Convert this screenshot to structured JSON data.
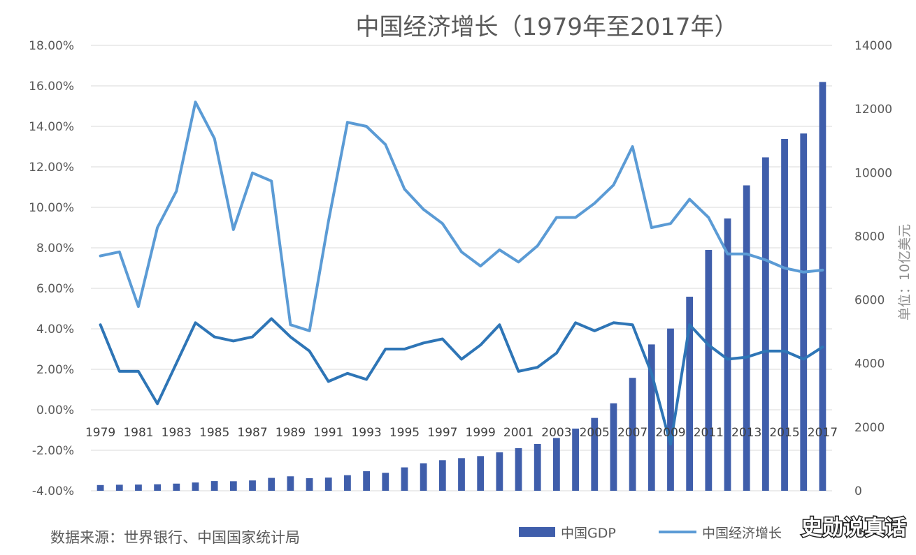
{
  "chart_data": {
    "type": "bar+line",
    "title": "中国经济增长（1979年至2017年）",
    "source": "数据来源：世界银行、中国国家统计局",
    "right_axis_unit": "单位：10亿美元",
    "watermark": "史勋说真话",
    "x_tick_labels": [
      "1979",
      "1981",
      "1983",
      "1985",
      "1987",
      "1989",
      "1991",
      "1993",
      "1995",
      "1997",
      "1999",
      "2001",
      "2003",
      "2005",
      "2007",
      "2009",
      "2011",
      "2013",
      "2015",
      "2017"
    ],
    "years": [
      1979,
      1980,
      1981,
      1982,
      1983,
      1984,
      1985,
      1986,
      1987,
      1988,
      1989,
      1990,
      1991,
      1992,
      1993,
      1994,
      1995,
      1996,
      1997,
      1998,
      1999,
      2000,
      2001,
      2002,
      2003,
      2004,
      2005,
      2006,
      2007,
      2008,
      2009,
      2010,
      2011,
      2012,
      2013,
      2014,
      2015,
      2016,
      2017
    ],
    "left_axis": {
      "min": -4,
      "max": 18,
      "step": 2,
      "tick_labels": [
        "-4.00%",
        "-2.00%",
        "0.00%",
        "2.00%",
        "4.00%",
        "6.00%",
        "8.00%",
        "10.00%",
        "12.00%",
        "14.00%",
        "16.00%",
        "18.00%"
      ]
    },
    "right_axis": {
      "min": 0,
      "max": 14000,
      "step": 2000,
      "tick_labels": [
        "0",
        "2000",
        "4000",
        "6000",
        "8000",
        "10000",
        "12000",
        "14000"
      ]
    },
    "series": [
      {
        "name": "中国GDP",
        "type": "bar",
        "axis": "right",
        "color": "#3f5eab",
        "values": [
          180,
          190,
          195,
          205,
          225,
          260,
          305,
          300,
          325,
          405,
          455,
          395,
          415,
          490,
          615,
          565,
          735,
          865,
          960,
          1025,
          1090,
          1210,
          1340,
          1470,
          1660,
          1955,
          2290,
          2750,
          3550,
          4600,
          5100,
          6100,
          7570,
          8560,
          9600,
          10480,
          11060,
          11230,
          12850
        ]
      },
      {
        "name": "中国经济增长",
        "type": "line",
        "axis": "left",
        "color": "#5b9bd5",
        "values": [
          7.6,
          7.8,
          5.1,
          9.0,
          10.8,
          15.2,
          13.4,
          8.9,
          11.7,
          11.3,
          4.2,
          3.9,
          9.3,
          14.2,
          14.0,
          13.1,
          10.9,
          9.9,
          9.2,
          7.8,
          7.1,
          7.9,
          7.3,
          8.1,
          9.5,
          9.5,
          10.2,
          11.1,
          13.0,
          9.0,
          9.2,
          10.4,
          9.5,
          7.7,
          7.7,
          7.4,
          7.0,
          6.8,
          6.9
        ]
      },
      {
        "name": "",
        "type": "line",
        "axis": "left",
        "color": "#2e75b6",
        "values": [
          4.2,
          1.9,
          1.9,
          0.3,
          2.3,
          4.3,
          3.6,
          3.4,
          3.6,
          4.5,
          3.6,
          2.9,
          1.4,
          1.8,
          1.5,
          3.0,
          3.0,
          3.3,
          3.5,
          2.5,
          3.2,
          4.2,
          1.9,
          2.1,
          2.8,
          4.3,
          3.9,
          4.3,
          4.2,
          1.8,
          -1.7,
          4.2,
          3.2,
          2.5,
          2.6,
          2.9,
          2.9,
          2.5,
          3.1
        ]
      }
    ]
  }
}
